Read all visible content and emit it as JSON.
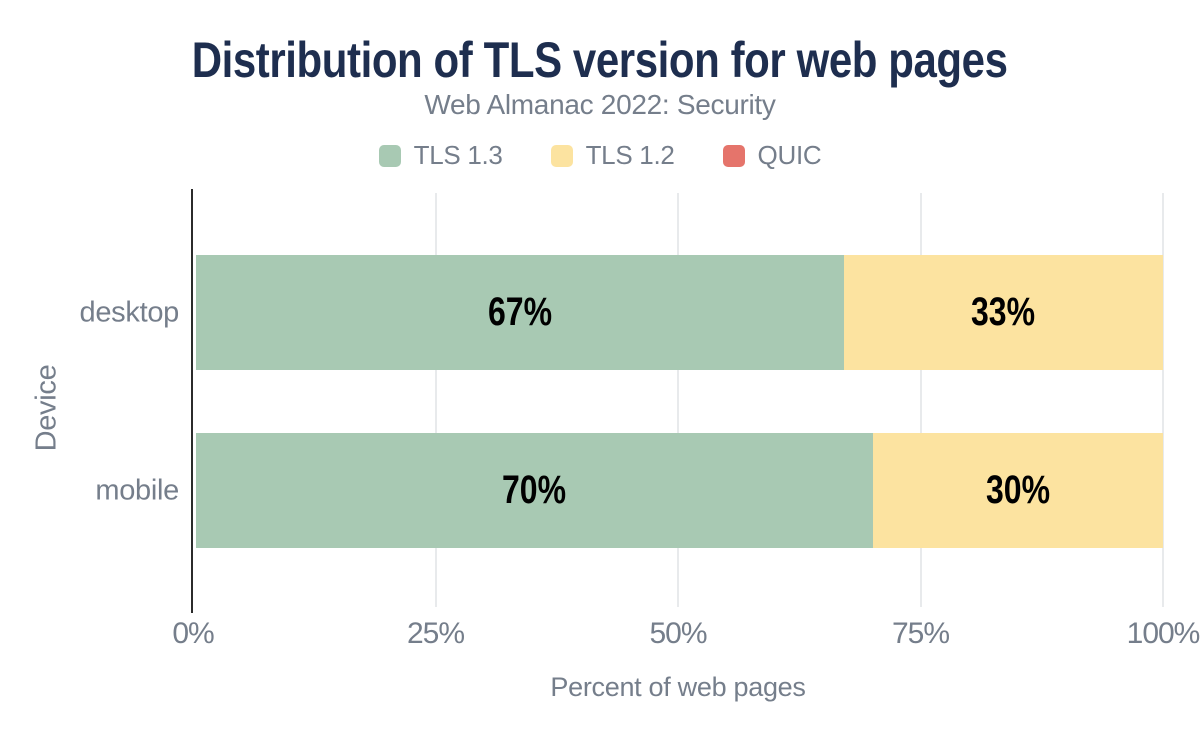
{
  "chart_data": {
    "type": "bar",
    "orientation": "horizontal",
    "stacked": true,
    "title": "Distribution of TLS version for web pages",
    "subtitle": "Web Almanac 2022: Security",
    "xlabel": "Percent of web pages",
    "ylabel": "Device",
    "categories": [
      "desktop",
      "mobile"
    ],
    "series": [
      {
        "name": "TLS 1.3",
        "color": "#a8c9b3",
        "values": [
          67,
          70
        ]
      },
      {
        "name": "TLS 1.2",
        "color": "#fce3a0",
        "values": [
          33,
          30
        ]
      },
      {
        "name": "QUIC",
        "color": "#e5746b",
        "values": [
          0,
          0
        ]
      }
    ],
    "data_labels": [
      [
        "67%",
        "33%"
      ],
      [
        "70%",
        "30%"
      ]
    ],
    "x_ticks": [
      0,
      25,
      50,
      75,
      100
    ],
    "x_tick_labels": [
      "0%",
      "25%",
      "50%",
      "75%",
      "100%"
    ],
    "xlim": [
      0,
      100
    ],
    "legend_position": "top",
    "grid": "vertical"
  },
  "style": {
    "title_color": "#1e2e4f",
    "text_color": "#757e8b",
    "data_label_color": "#000000",
    "gridline_color": "#e8eaec",
    "axis_color": "#2b2b2b",
    "background": "#ffffff"
  }
}
